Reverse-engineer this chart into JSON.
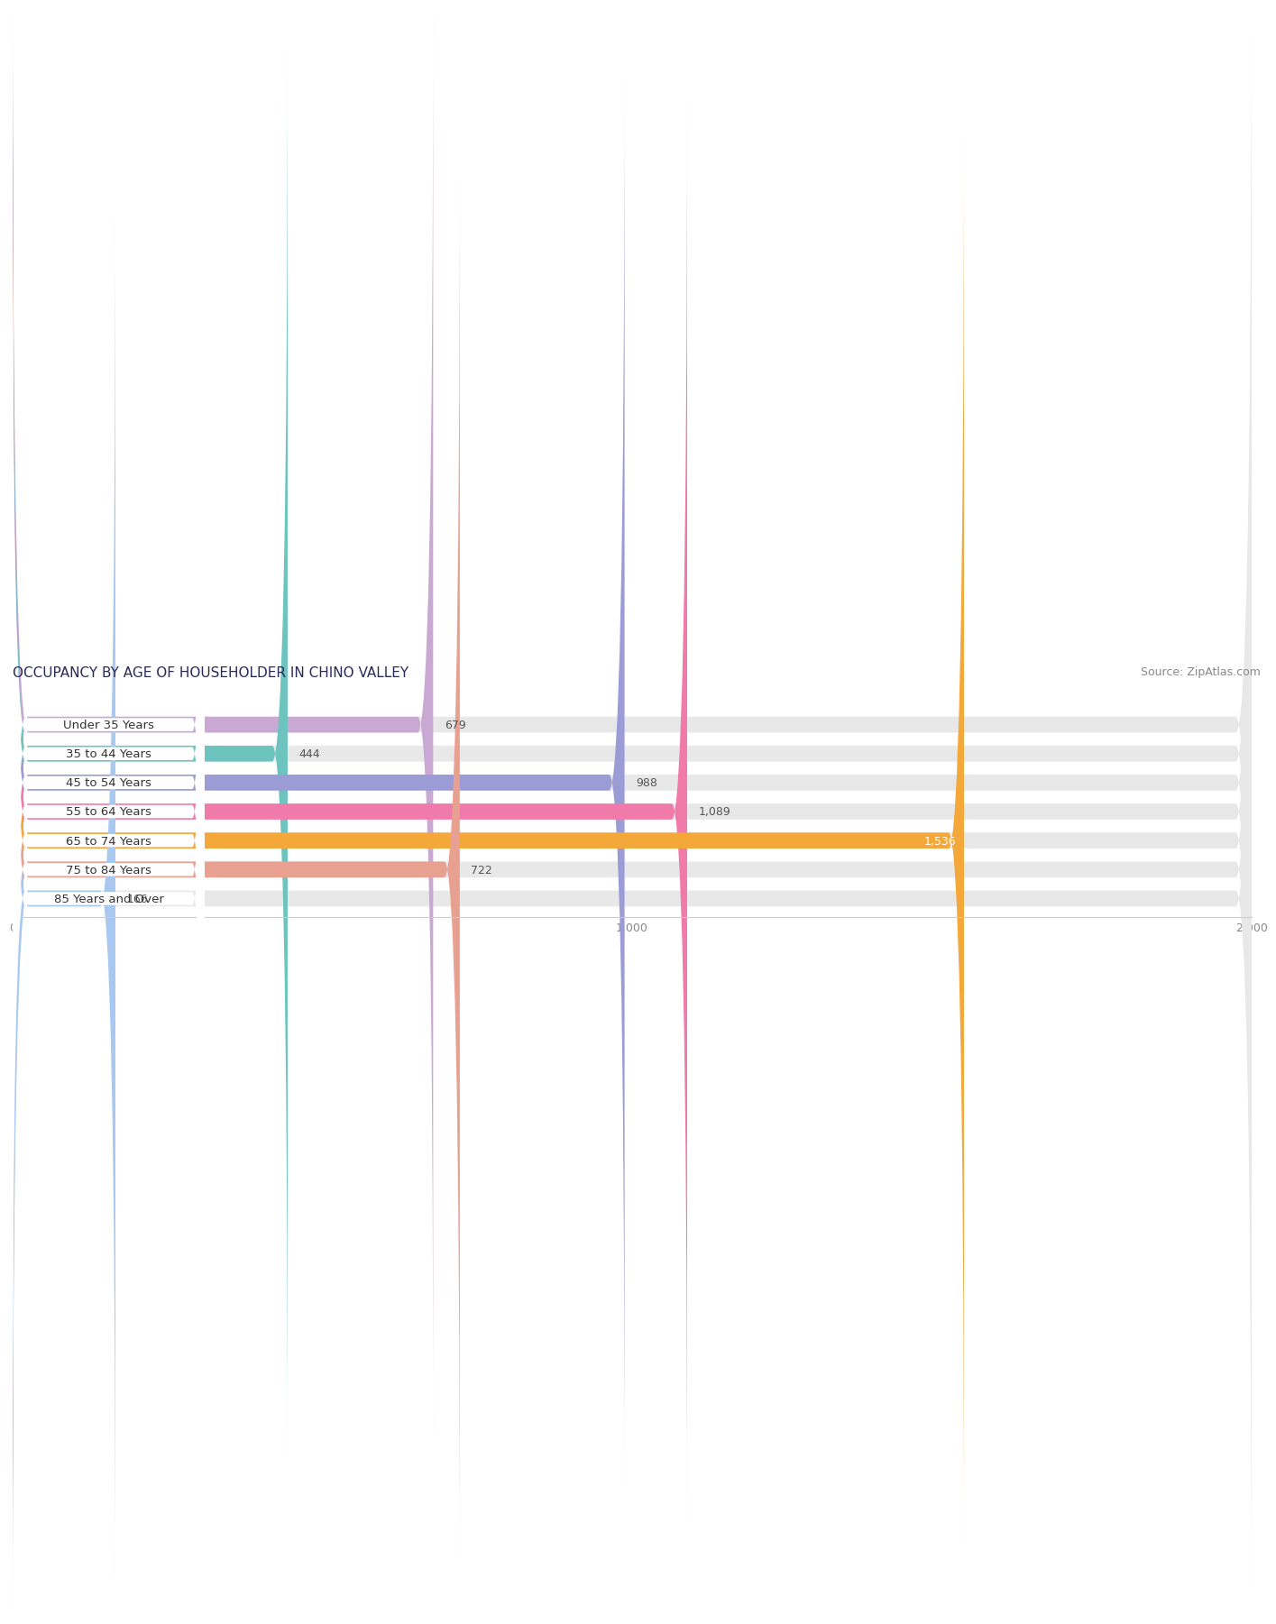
{
  "title": "OCCUPANCY BY AGE OF HOUSEHOLDER IN CHINO VALLEY",
  "source": "Source: ZipAtlas.com",
  "categories": [
    "Under 35 Years",
    "35 to 44 Years",
    "45 to 54 Years",
    "55 to 64 Years",
    "65 to 74 Years",
    "75 to 84 Years",
    "85 Years and Over"
  ],
  "values": [
    679,
    444,
    988,
    1089,
    1536,
    722,
    166
  ],
  "bar_colors": [
    "#c9a8d4",
    "#6dc4bf",
    "#9b9bd6",
    "#f07aaa",
    "#f5a83a",
    "#e8a090",
    "#a8c8f0"
  ],
  "bar_bg_color": "#e8e8e8",
  "xlim": [
    0,
    2000
  ],
  "xticks": [
    0,
    1000,
    2000
  ],
  "xtick_labels": [
    "0",
    "1,000",
    "2,000"
  ],
  "title_fontsize": 11,
  "source_fontsize": 9,
  "bar_label_fontsize": 9,
  "category_fontsize": 9.5,
  "bar_height": 0.55,
  "background_color": "#ffffff",
  "value_inside_idx": 4,
  "value_inside_color": "#ffffff"
}
